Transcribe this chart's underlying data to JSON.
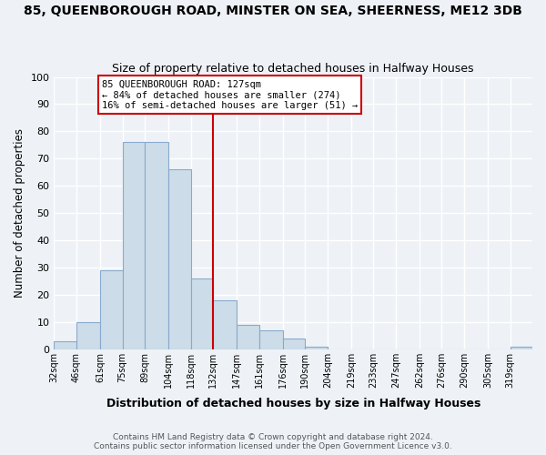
{
  "title": "85, QUEENBOROUGH ROAD, MINSTER ON SEA, SHEERNESS, ME12 3DB",
  "subtitle": "Size of property relative to detached houses in Halfway Houses",
  "xlabel": "Distribution of detached houses by size in Halfway Houses",
  "ylabel": "Number of detached properties",
  "footer_line1": "Contains HM Land Registry data © Crown copyright and database right 2024.",
  "footer_line2": "Contains public sector information licensed under the Open Government Licence v3.0.",
  "bin_labels": [
    "32sqm",
    "46sqm",
    "61sqm",
    "75sqm",
    "89sqm",
    "104sqm",
    "118sqm",
    "132sqm",
    "147sqm",
    "161sqm",
    "176sqm",
    "190sqm",
    "204sqm",
    "219sqm",
    "233sqm",
    "247sqm",
    "262sqm",
    "276sqm",
    "290sqm",
    "305sqm",
    "319sqm"
  ],
  "bar_heights": [
    3,
    10,
    29,
    76,
    76,
    66,
    26,
    18,
    9,
    7,
    4,
    1,
    0,
    0,
    0,
    0,
    0,
    0,
    0,
    0,
    1
  ],
  "bar_color": "#ccdce8",
  "bar_edge_color": "#88aacc",
  "vline_color": "#cc0000",
  "annotation_text": "85 QUEENBOROUGH ROAD: 127sqm\n← 84% of detached houses are smaller (274)\n16% of semi-detached houses are larger (51) →",
  "annotation_box_color": "white",
  "annotation_box_edge": "#cc0000",
  "ylim": [
    0,
    100
  ],
  "yticks": [
    0,
    10,
    20,
    30,
    40,
    50,
    60,
    70,
    80,
    90,
    100
  ],
  "bin_edges": [
    32,
    46,
    61,
    75,
    89,
    104,
    118,
    132,
    147,
    161,
    176,
    190,
    204,
    219,
    233,
    247,
    262,
    276,
    290,
    305,
    319,
    333
  ],
  "background_color": "#eef2f7",
  "grid_color": "white",
  "title_fontsize": 10,
  "subtitle_fontsize": 9,
  "vline_bin_index": 7
}
